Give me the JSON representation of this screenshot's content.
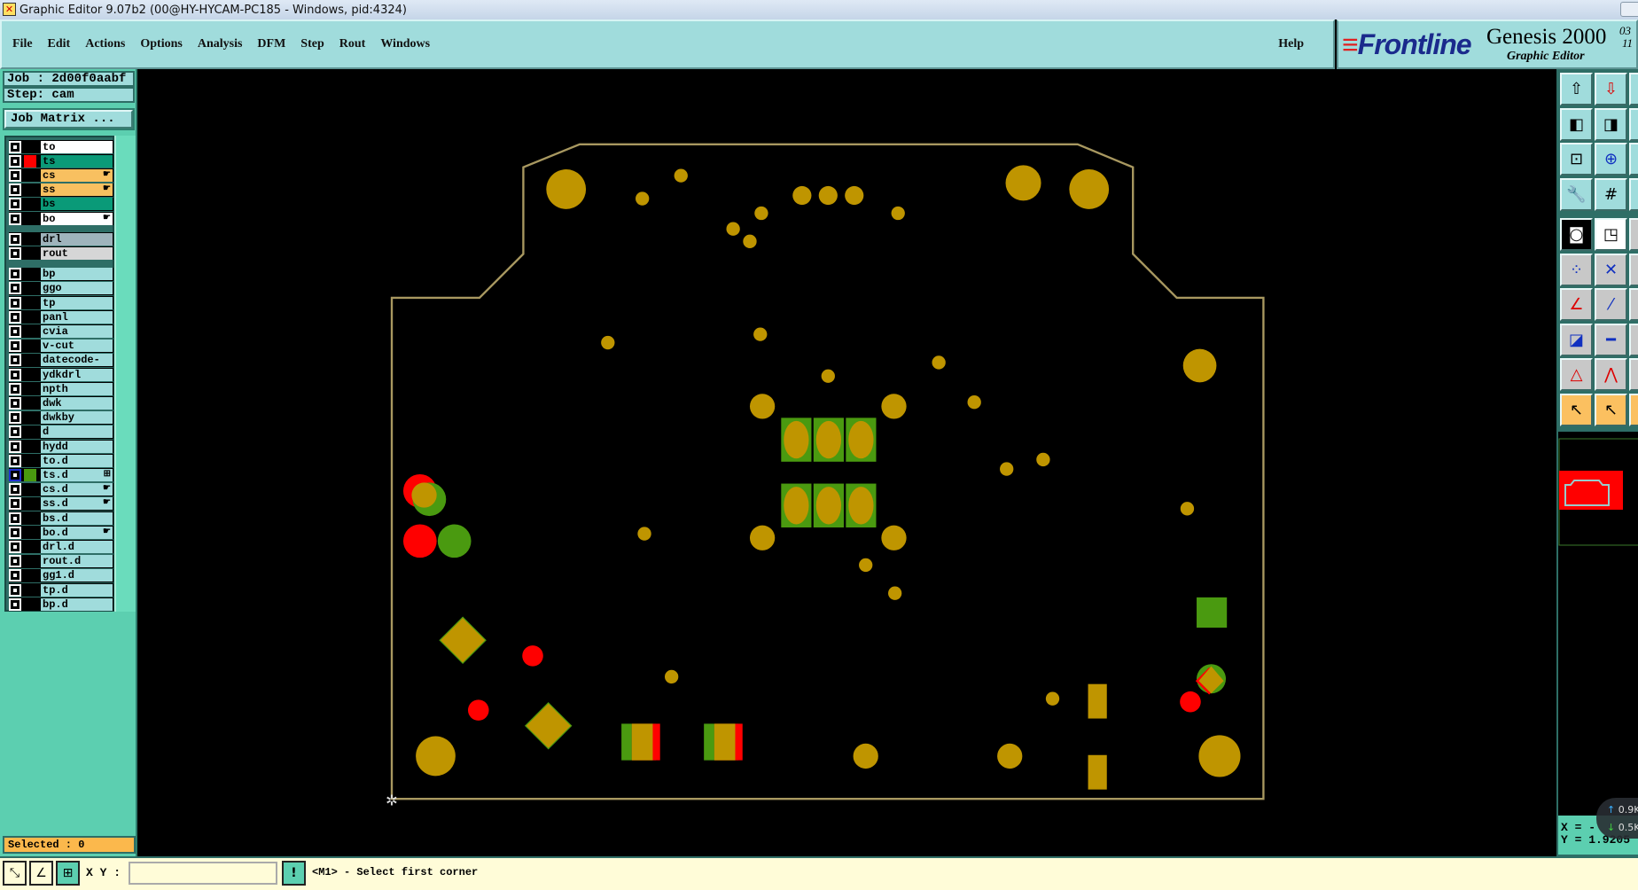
{
  "window": {
    "title": "Graphic Editor 9.07b2 (00@HY-HYCAM-PC185 - Windows, pid:4324)"
  },
  "menu": {
    "items": [
      "File",
      "Edit",
      "Actions",
      "Options",
      "Analysis",
      "DFM",
      "Step",
      "Rout",
      "Windows"
    ],
    "help": "Help"
  },
  "logo": {
    "brand": "Frontline",
    "product": "Genesis 2000",
    "subtitle": "Graphic Editor",
    "version_line1": "03",
    "version_line2": "11"
  },
  "job": {
    "job_label": "Job : 2d00f0aabf",
    "step_label": "Step: cam",
    "matrix_button": "Job Matrix ..."
  },
  "layers": [
    {
      "name": "to",
      "bg": "#ffffff",
      "color": "",
      "mark": "",
      "group": 0
    },
    {
      "name": "ts",
      "bg": "#0a9a78",
      "color": "#ff0000",
      "mark": "",
      "group": 0
    },
    {
      "name": "cs",
      "bg": "#f8c060",
      "color": "",
      "mark": "hand",
      "group": 0
    },
    {
      "name": "ss",
      "bg": "#f8c060",
      "color": "",
      "mark": "hand",
      "group": 0
    },
    {
      "name": "bs",
      "bg": "#0a9a78",
      "color": "",
      "mark": "",
      "group": 0
    },
    {
      "name": "bo",
      "bg": "#ffffff",
      "color": "",
      "mark": "hand",
      "group": 0
    },
    {
      "name": "drl",
      "bg": "#9fb4bc",
      "color": "",
      "mark": "",
      "group": 1
    },
    {
      "name": "rout",
      "bg": "#d6d6d6",
      "color": "",
      "mark": "",
      "group": 1
    },
    {
      "name": "bp",
      "bg": "#a0dcdc",
      "color": "",
      "mark": "",
      "group": 2
    },
    {
      "name": "ggo",
      "bg": "#a0dcdc",
      "color": "",
      "mark": "",
      "group": 2
    },
    {
      "name": "tp",
      "bg": "#a0dcdc",
      "color": "",
      "mark": "",
      "group": 2
    },
    {
      "name": "panl",
      "bg": "#a0dcdc",
      "color": "",
      "mark": "",
      "group": 2
    },
    {
      "name": "cvia",
      "bg": "#a0dcdc",
      "color": "",
      "mark": "",
      "group": 2
    },
    {
      "name": "v-cut",
      "bg": "#a0dcdc",
      "color": "",
      "mark": "",
      "group": 2
    },
    {
      "name": "datecode-to",
      "bg": "#a0dcdc",
      "color": "",
      "mark": "",
      "group": 2
    },
    {
      "name": "ydkdrl",
      "bg": "#a0dcdc",
      "color": "",
      "mark": "",
      "group": 2
    },
    {
      "name": "npth",
      "bg": "#a0dcdc",
      "color": "",
      "mark": "",
      "group": 2
    },
    {
      "name": "dwk",
      "bg": "#a0dcdc",
      "color": "",
      "mark": "",
      "group": 2
    },
    {
      "name": "dwkby",
      "bg": "#a0dcdc",
      "color": "",
      "mark": "",
      "group": 2
    },
    {
      "name": "d",
      "bg": "#a0dcdc",
      "color": "",
      "mark": "",
      "group": 2
    },
    {
      "name": "hydd",
      "bg": "#a0dcdc",
      "color": "",
      "mark": "",
      "group": 2
    },
    {
      "name": "to.d",
      "bg": "#a0dcdc",
      "color": "",
      "mark": "",
      "group": 2
    },
    {
      "name": "ts.d",
      "bg": "#a0dcdc",
      "color": "#4a9a10",
      "mark": "grid",
      "group": 2,
      "selected": true
    },
    {
      "name": "cs.d",
      "bg": "#a0dcdc",
      "color": "",
      "mark": "hand",
      "group": 2
    },
    {
      "name": "ss.d",
      "bg": "#a0dcdc",
      "color": "",
      "mark": "hand",
      "group": 2
    },
    {
      "name": "bs.d",
      "bg": "#a0dcdc",
      "color": "",
      "mark": "",
      "group": 2
    },
    {
      "name": "bo.d",
      "bg": "#a0dcdc",
      "color": "",
      "mark": "hand",
      "group": 2
    },
    {
      "name": "drl.d",
      "bg": "#a0dcdc",
      "color": "",
      "mark": "",
      "group": 2
    },
    {
      "name": "rout.d",
      "bg": "#a0dcdc",
      "color": "",
      "mark": "",
      "group": 2
    },
    {
      "name": "gg1.d",
      "bg": "#a0dcdc",
      "color": "",
      "mark": "",
      "group": 2
    },
    {
      "name": "tp.d",
      "bg": "#a0dcdc",
      "color": "",
      "mark": "",
      "group": 2
    },
    {
      "name": "bp.d",
      "bg": "#a0dcdc",
      "color": "",
      "mark": "",
      "group": 2
    }
  ],
  "status": {
    "selected": "Selected : 0",
    "xy_label": "X Y :",
    "xy_value": "",
    "prompt": "<M1> - Select first corner"
  },
  "coords": {
    "x": "X = -",
    "y": "Y = 1.9205"
  },
  "network": {
    "up": "0.9K",
    "down": "0.5K"
  },
  "colors": {
    "board_outline": "#a89860",
    "pad": "#bf9500",
    "top_layer": "#4a9a10",
    "red_layer": "#ff0000",
    "panel": "#5ccfb0",
    "menu": "#a0dcdc"
  },
  "toolbar_icons": [
    "undo-up-icon",
    "redo-down-icon",
    "pan-more-icon",
    "pan-left-icon",
    "pan-right-icon",
    "pan-more-icon",
    "zoom-fit-icon",
    "zoom-center-icon",
    "zoom-more-icon",
    "settings-palette-icon",
    "grid-icon",
    "red-tool-icon",
    "snap-icon",
    "select-box-icon",
    "misc-icon",
    "connect-icon",
    "cross-icon",
    "misc-icon",
    "line-red-icon",
    "line-blue-icon",
    "misc-icon",
    "pad-snap-icon",
    "line-center-icon",
    "misc-icon",
    "triangle-icon",
    "arrow-chevron-icon",
    "misc-icon",
    "pointer-icon",
    "pointer-box-icon",
    "pointer-more-icon"
  ]
}
